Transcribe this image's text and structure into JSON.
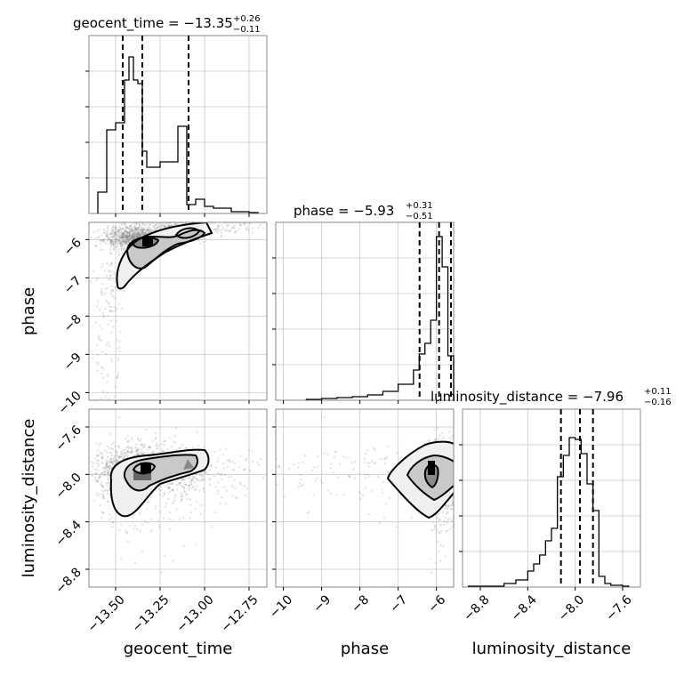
{
  "chart_data": [
    {
      "type": "histogram",
      "parameter": "geocent_time",
      "title": {
        "prefix": "geocent_time = ",
        "value": "−13.35",
        "sup": "+0.26",
        "sub": "−0.11"
      },
      "xlim": [
        -13.65,
        -12.65
      ],
      "quantiles": [
        -13.46,
        -13.35,
        -13.09
      ],
      "bins": [
        -13.6,
        -13.55,
        -13.5,
        -13.45,
        -13.425,
        -13.4,
        -13.375,
        -13.35,
        -13.325,
        -13.25,
        -13.15,
        -13.1,
        -13.05,
        -13.0,
        -12.95,
        -12.85,
        -12.75,
        -12.7
      ],
      "counts": [
        0.12,
        0.47,
        0.51,
        0.75,
        0.88,
        0.75,
        0.73,
        0.35,
        0.26,
        0.29,
        0.49,
        0.05,
        0.08,
        0.04,
        0.03,
        0.01,
        0.005
      ],
      "ylim": [
        0,
        1.0
      ]
    },
    {
      "type": "histogram",
      "parameter": "phase",
      "title": {
        "prefix": "phase = ",
        "value": "−5.93",
        "sup": "+0.31",
        "sub": "−0.51"
      },
      "xlim": [
        -10.2,
        -5.55
      ],
      "quantiles": [
        -6.44,
        -5.93,
        -5.62
      ],
      "bins": [
        -9.4,
        -9.0,
        -8.6,
        -8.2,
        -7.8,
        -7.4,
        -7.0,
        -6.6,
        -6.45,
        -6.3,
        -6.15,
        -6.0,
        -5.85,
        -5.7,
        -5.55
      ],
      "counts": [
        0.005,
        0.01,
        0.015,
        0.02,
        0.03,
        0.05,
        0.09,
        0.17,
        0.26,
        0.32,
        0.45,
        0.92,
        0.75,
        0.25
      ],
      "ylim": [
        0,
        1.0
      ]
    },
    {
      "type": "histogram",
      "parameter": "luminosity_distance",
      "title": {
        "prefix": "luminosity_distance = ",
        "value": "−7.96",
        "sup": "+0.11",
        "sub": "−0.16"
      },
      "xlim": [
        -8.95,
        -7.45
      ],
      "quantiles": [
        -8.12,
        -7.96,
        -7.85
      ],
      "bins": [
        -8.9,
        -8.6,
        -8.5,
        -8.4,
        -8.35,
        -8.3,
        -8.25,
        -8.2,
        -8.15,
        -8.1,
        -8.05,
        -8.0,
        -7.95,
        -7.9,
        -7.85,
        -7.8,
        -7.75,
        -7.7,
        -7.6,
        -7.55
      ],
      "counts": [
        0.005,
        0.02,
        0.04,
        0.09,
        0.13,
        0.18,
        0.26,
        0.33,
        0.62,
        0.74,
        0.84,
        0.83,
        0.75,
        0.58,
        0.43,
        0.06,
        0.02,
        0.01,
        0.005
      ],
      "ylim": [
        0,
        1.0
      ]
    },
    {
      "type": "scatter-contour",
      "x_param": "geocent_time",
      "y_param": "phase",
      "xlim": [
        -13.65,
        -12.65
      ],
      "ylim": [
        -10.2,
        -5.55
      ],
      "scatter_y_jitter": 0.2
    },
    {
      "type": "scatter-contour",
      "x_param": "geocent_time",
      "y_param": "luminosity_distance",
      "xlim": [
        -13.65,
        -12.65
      ],
      "ylim": [
        -8.95,
        -7.45
      ],
      "scatter_y_jitter": 0.2
    },
    {
      "type": "scatter-contour",
      "x_param": "phase",
      "y_param": "luminosity_distance",
      "xlim": [
        -10.2,
        -5.55
      ],
      "ylim": [
        -8.95,
        -7.45
      ],
      "scatter_y_jitter": 0.2
    }
  ],
  "axes": {
    "geocent_time": {
      "label": "geocent_time",
      "ticks": [
        -13.5,
        -13.25,
        -13.0,
        -12.75
      ],
      "tick_labels": [
        "−13.50",
        "−13.25",
        "−13.00",
        "−12.75"
      ]
    },
    "phase": {
      "label": "phase",
      "ticks": [
        -10,
        -9,
        -8,
        -7,
        -6
      ],
      "tick_labels": [
        "−10",
        "−9",
        "−8",
        "−7",
        "−6"
      ]
    },
    "luminosity_distance": {
      "label": "luminosity_distance",
      "ticks": [
        -8.8,
        -8.4,
        -8.0,
        -7.6
      ],
      "tick_labels": [
        "−8.8",
        "−8.4",
        "−8.0",
        "−7.6"
      ]
    }
  },
  "colors": {
    "hist": "#000000",
    "points": "#7f7f7f",
    "frame": "#888888",
    "grid": "#c8c8c8"
  }
}
